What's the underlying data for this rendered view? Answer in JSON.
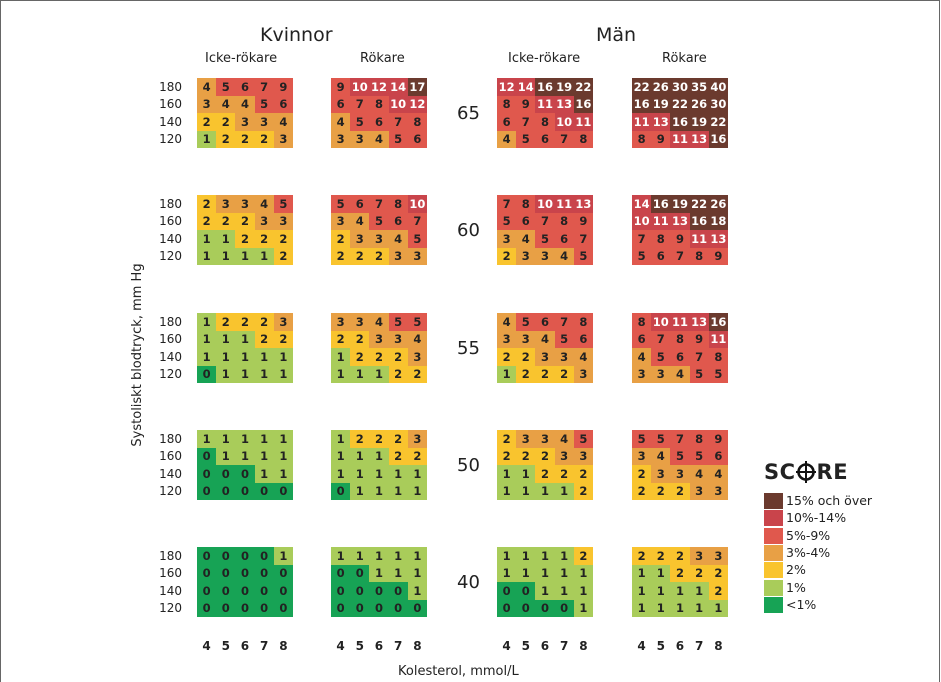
{
  "chart_data": {
    "type": "heatmap",
    "title": "",
    "sexes": [
      "Kvinnor",
      "Män"
    ],
    "groups": [
      "Icke-rökare",
      "Rökare",
      "Icke-rökare",
      "Rökare"
    ],
    "ages": [
      "65",
      "60",
      "55",
      "50",
      "40"
    ],
    "sbp_ticks": [
      "180",
      "160",
      "140",
      "120"
    ],
    "cholesterol_ticks": [
      "4",
      "5",
      "6",
      "7",
      "8"
    ],
    "xlabel": "Kolesterol, mmol/L",
    "ylabel": "Systoliskt blodtryck, mm Hg",
    "legend_title": "SCORE",
    "legend_items": [
      {
        "label": "15% och över",
        "color": "#6b3a2e"
      },
      {
        "label": "10%-14%",
        "color": "#c9444b"
      },
      {
        "label": "5%-9%",
        "color": "#e0584d"
      },
      {
        "label": "3%-4%",
        "color": "#e8a045"
      },
      {
        "label": "2%",
        "color": "#f9c42e"
      },
      {
        "label": "1%",
        "color": "#a9cc5a"
      },
      {
        "label": "<1%",
        "color": "#17a355"
      }
    ],
    "values": [
      [
        [
          [
            4,
            5,
            6,
            7,
            9
          ],
          [
            3,
            4,
            4,
            5,
            6
          ],
          [
            2,
            2,
            3,
            3,
            4
          ],
          [
            1,
            2,
            2,
            2,
            3
          ]
        ],
        [
          [
            9,
            10,
            12,
            14,
            17
          ],
          [
            6,
            7,
            8,
            10,
            12
          ],
          [
            4,
            5,
            6,
            7,
            8
          ],
          [
            3,
            3,
            4,
            5,
            6
          ]
        ],
        [
          [
            12,
            14,
            16,
            19,
            22
          ],
          [
            8,
            9,
            11,
            13,
            16
          ],
          [
            6,
            7,
            8,
            10,
            11
          ],
          [
            4,
            5,
            6,
            7,
            8
          ]
        ],
        [
          [
            22,
            26,
            30,
            35,
            40
          ],
          [
            16,
            19,
            22,
            26,
            30
          ],
          [
            11,
            13,
            16,
            19,
            22
          ],
          [
            8,
            9,
            11,
            13,
            16
          ]
        ]
      ],
      [
        [
          [
            2,
            3,
            3,
            4,
            5
          ],
          [
            2,
            2,
            2,
            3,
            3
          ],
          [
            1,
            1,
            2,
            2,
            2
          ],
          [
            1,
            1,
            1,
            1,
            2
          ]
        ],
        [
          [
            5,
            6,
            7,
            8,
            10
          ],
          [
            3,
            4,
            5,
            6,
            7
          ],
          [
            2,
            3,
            3,
            4,
            5
          ],
          [
            2,
            2,
            2,
            3,
            3
          ]
        ],
        [
          [
            7,
            8,
            10,
            11,
            13
          ],
          [
            5,
            6,
            7,
            8,
            9
          ],
          [
            3,
            4,
            5,
            6,
            7
          ],
          [
            2,
            3,
            3,
            4,
            5
          ]
        ],
        [
          [
            14,
            16,
            19,
            22,
            26
          ],
          [
            10,
            11,
            13,
            16,
            18
          ],
          [
            7,
            8,
            9,
            11,
            13
          ],
          [
            5,
            6,
            7,
            8,
            9
          ]
        ]
      ],
      [
        [
          [
            1,
            2,
            2,
            2,
            3
          ],
          [
            1,
            1,
            1,
            2,
            2
          ],
          [
            1,
            1,
            1,
            1,
            1
          ],
          [
            0,
            1,
            1,
            1,
            1
          ]
        ],
        [
          [
            3,
            3,
            4,
            5,
            5
          ],
          [
            2,
            2,
            3,
            3,
            4
          ],
          [
            1,
            2,
            2,
            2,
            3
          ],
          [
            1,
            1,
            1,
            2,
            2
          ]
        ],
        [
          [
            4,
            5,
            6,
            7,
            8
          ],
          [
            3,
            3,
            4,
            5,
            6
          ],
          [
            2,
            2,
            3,
            3,
            4
          ],
          [
            1,
            2,
            2,
            2,
            3
          ]
        ],
        [
          [
            8,
            10,
            11,
            13,
            16
          ],
          [
            6,
            7,
            8,
            9,
            11
          ],
          [
            4,
            5,
            6,
            7,
            8
          ],
          [
            3,
            3,
            4,
            5,
            5
          ]
        ]
      ],
      [
        [
          [
            1,
            1,
            1,
            1,
            1
          ],
          [
            0,
            1,
            1,
            1,
            1
          ],
          [
            0,
            0,
            0,
            1,
            1
          ],
          [
            0,
            0,
            0,
            0,
            0
          ]
        ],
        [
          [
            1,
            2,
            2,
            2,
            3
          ],
          [
            1,
            1,
            1,
            2,
            2
          ],
          [
            1,
            1,
            1,
            1,
            1
          ],
          [
            0,
            1,
            1,
            1,
            1
          ]
        ],
        [
          [
            2,
            3,
            3,
            4,
            5
          ],
          [
            2,
            2,
            2,
            3,
            3
          ],
          [
            1,
            1,
            2,
            2,
            2
          ],
          [
            1,
            1,
            1,
            1,
            2
          ]
        ],
        [
          [
            5,
            5,
            7,
            8,
            9
          ],
          [
            3,
            4,
            5,
            5,
            6
          ],
          [
            2,
            3,
            3,
            4,
            4
          ],
          [
            2,
            2,
            2,
            3,
            3
          ]
        ]
      ],
      [
        [
          [
            0,
            0,
            0,
            0,
            1
          ],
          [
            0,
            0,
            0,
            0,
            0
          ],
          [
            0,
            0,
            0,
            0,
            0
          ],
          [
            0,
            0,
            0,
            0,
            0
          ]
        ],
        [
          [
            1,
            1,
            1,
            1,
            1
          ],
          [
            0,
            0,
            1,
            1,
            1
          ],
          [
            0,
            0,
            0,
            0,
            1
          ],
          [
            0,
            0,
            0,
            0,
            0
          ]
        ],
        [
          [
            1,
            1,
            1,
            1,
            2
          ],
          [
            1,
            1,
            1,
            1,
            1
          ],
          [
            0,
            0,
            1,
            1,
            1
          ],
          [
            0,
            0,
            0,
            0,
            1
          ]
        ],
        [
          [
            2,
            2,
            2,
            3,
            3
          ],
          [
            1,
            1,
            2,
            2,
            2
          ],
          [
            1,
            1,
            1,
            1,
            2
          ],
          [
            1,
            1,
            1,
            1,
            1
          ]
        ]
      ]
    ]
  }
}
